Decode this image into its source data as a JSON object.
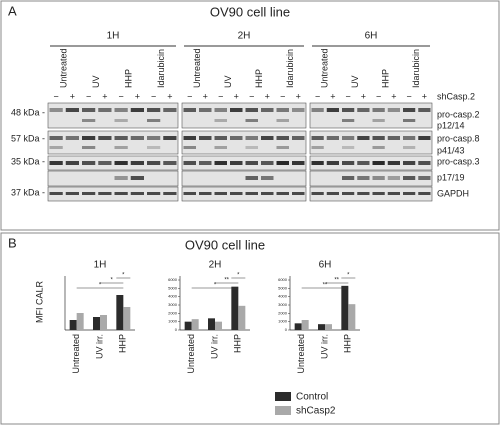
{
  "panel_a": {
    "label": "A",
    "title": "OV90 cell line",
    "times": [
      "1H",
      "2H",
      "6H"
    ],
    "treatments": [
      "Untreated",
      "UV",
      "HHP",
      "Idarubicin"
    ],
    "minus": "−",
    "plus": "+",
    "size_labels": [
      "48 kDa -",
      "57 kDa -",
      "35 kDa -",
      "37 kDa -"
    ],
    "row_labels": [
      "shCasp.2",
      "pro-casp.2",
      "p12/14",
      "pro-casp.8",
      "p41/43",
      "pro-casp.3",
      "p17/19",
      "GAPDH"
    ]
  },
  "panel_b": {
    "label": "B",
    "title": "OV90 cell line",
    "y_label": "MFI CALR"
  },
  "chart_data": [
    {
      "type": "bar",
      "title": "1H",
      "categories": [
        "Untreated",
        "UV irr.",
        "HHP"
      ],
      "series": [
        {
          "name": "Control",
          "color": "#2b2b2b",
          "values": [
            100,
            130,
            350
          ]
        },
        {
          "name": "shCasp2",
          "color": "#a9a9a9",
          "values": [
            170,
            150,
            230
          ]
        }
      ],
      "ylim": [
        0,
        500
      ],
      "annotations": [
        "*",
        "*",
        "*"
      ]
    },
    {
      "type": "bar",
      "title": "2H",
      "categories": [
        "Untreated",
        "UV irr.",
        "HHP"
      ],
      "series": [
        {
          "color": "#2b2b2b",
          "values": [
            1000,
            1400,
            5200
          ]
        },
        {
          "color": "#a9a9a9",
          "values": [
            1300,
            1000,
            2900
          ]
        }
      ],
      "ylim": [
        0,
        6000
      ],
      "yticks": [
        0,
        1000,
        2000,
        3000,
        4000,
        5000,
        6000
      ],
      "annotations": [
        "*",
        "**",
        "*"
      ]
    },
    {
      "type": "bar",
      "title": "6H",
      "categories": [
        "Untreated",
        "UV irr.",
        "HHP"
      ],
      "series": [
        {
          "color": "#2b2b2b",
          "values": [
            800,
            700,
            5300
          ]
        },
        {
          "color": "#a9a9a9",
          "values": [
            1200,
            700,
            3100
          ]
        }
      ],
      "ylim": [
        0,
        6000
      ],
      "yticks": [
        0,
        1000,
        2000,
        3000,
        4000,
        5000,
        6000
      ],
      "annotations": [
        "**",
        "**",
        "*"
      ]
    }
  ]
}
